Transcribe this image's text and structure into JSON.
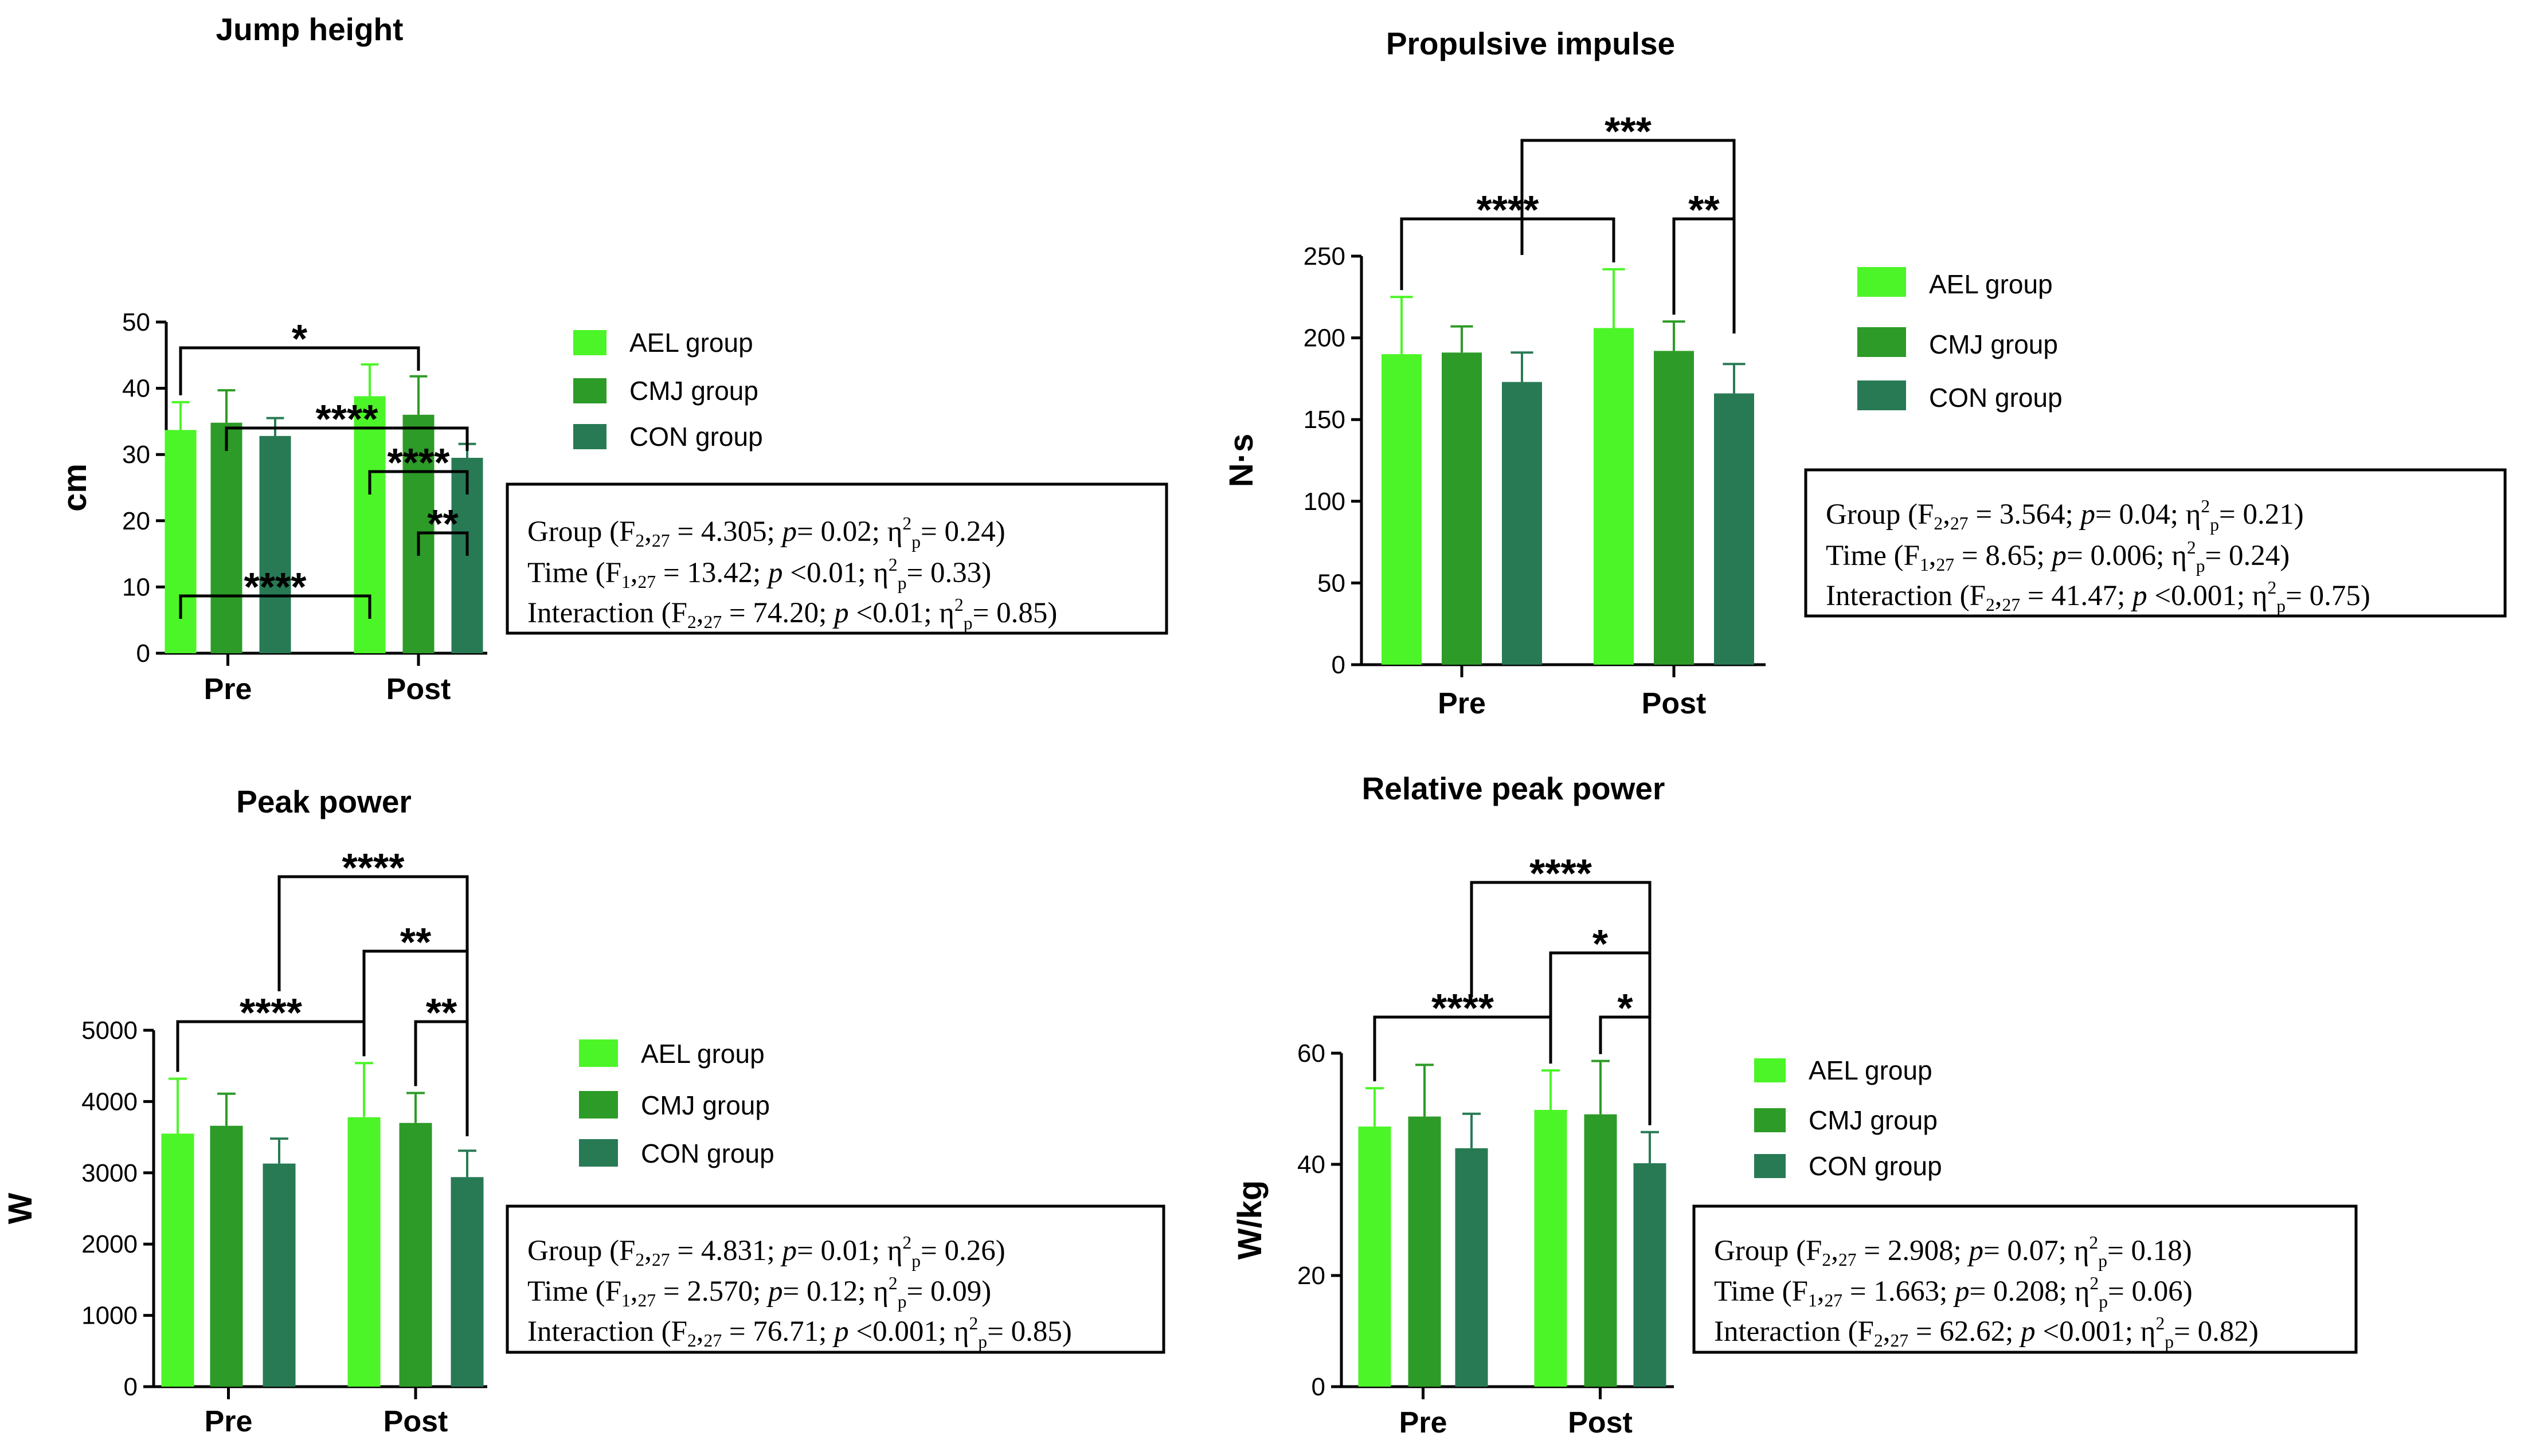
{
  "colors": {
    "AEL": "#4cf527",
    "CMJ": "#2d9b27",
    "CON": "#287a55",
    "ink": "#000000"
  },
  "legend": [
    "AEL group",
    "CMJ group",
    "CON group"
  ],
  "chart_data": [
    {
      "type": "bar",
      "title": "Jump height",
      "ylabel": "cm",
      "categories": [
        "Pre",
        "Post"
      ],
      "ylim": [
        0,
        50
      ],
      "yticks": [
        0,
        10,
        20,
        30,
        40,
        50
      ],
      "tick_labels": [
        "0",
        "10",
        "20",
        "30",
        "40",
        "50"
      ],
      "series": [
        {
          "name": "AEL group",
          "values": [
            33.7,
            38.8
          ],
          "errors": [
            4.2,
            4.8
          ]
        },
        {
          "name": "CMJ group",
          "values": [
            34.8,
            36.0
          ],
          "errors": [
            4.9,
            5.8
          ]
        },
        {
          "name": "CON group",
          "values": [
            32.8,
            29.5
          ],
          "errors": [
            2.7,
            2.1
          ]
        }
      ],
      "significance": [
        {
          "from": [
            0,
            0
          ],
          "to": [
            1,
            0
          ],
          "label": "****"
        },
        {
          "from": [
            1,
            1
          ],
          "to": [
            1,
            2
          ],
          "label": "**"
        },
        {
          "from": [
            1,
            0
          ],
          "to": [
            1,
            2
          ],
          "label": "****"
        },
        {
          "from": [
            0,
            1
          ],
          "to": [
            1,
            2
          ],
          "label": "****"
        },
        {
          "from": [
            0,
            0
          ],
          "to": [
            1,
            1
          ],
          "label": "*"
        }
      ],
      "stats": [
        {
          "name": "Group",
          "f_sub": "2",
          "df": "27",
          "f": "4.305",
          "p_op": "=",
          "p": "0.02",
          "eta": "0.24"
        },
        {
          "name": "Time",
          "f_sub": "1",
          "df": "27",
          "f": "13.42",
          "p_op": "<",
          "p": "0.01",
          "eta": "0.33"
        },
        {
          "name": "Interaction",
          "f_sub": "2",
          "df": "27",
          "f": "74.20",
          "p_op": "<",
          "p": "0.01",
          "eta": "0.85"
        }
      ]
    },
    {
      "type": "bar",
      "title": "Propulsive impulse",
      "ylabel": "N·s",
      "categories": [
        "Pre",
        "Post"
      ],
      "ylim": [
        0,
        250
      ],
      "yticks": [
        0,
        50,
        100,
        150,
        200,
        250
      ],
      "tick_labels": [
        "0",
        "50",
        "100",
        "150",
        "200",
        "250"
      ],
      "series": [
        {
          "name": "AEL group",
          "values": [
            190,
            206
          ],
          "errors": [
            35,
            36
          ]
        },
        {
          "name": "CMJ group",
          "values": [
            191,
            192
          ],
          "errors": [
            16,
            18
          ]
        },
        {
          "name": "CON group",
          "values": [
            173,
            166
          ],
          "errors": [
            18,
            18
          ]
        }
      ],
      "significance": [
        {
          "from": [
            0,
            0
          ],
          "to": [
            1,
            0
          ],
          "label": "****"
        },
        {
          "from": [
            1,
            1
          ],
          "to": [
            1,
            2
          ],
          "label": "**"
        },
        {
          "from": [
            0,
            2
          ],
          "to": [
            1,
            2
          ],
          "label": "***"
        }
      ],
      "stats": [
        {
          "name": "Group",
          "f_sub": "2",
          "df": "27",
          "f": "3.564",
          "p_op": "=",
          "p": "0.04",
          "eta": "0.21"
        },
        {
          "name": "Time",
          "f_sub": "1",
          "df": "27",
          "f": "8.65",
          "p_op": "=",
          "p": "0.006",
          "eta": "0.24"
        },
        {
          "name": "Interaction",
          "f_sub": "2",
          "df": "27",
          "f": "41.47",
          "p_op": "<",
          "p": "0.001",
          "eta": "0.75"
        }
      ]
    },
    {
      "type": "bar",
      "title": "Peak power",
      "ylabel": "W",
      "categories": [
        "Pre",
        "Post"
      ],
      "ylim": [
        0,
        5000
      ],
      "yticks": [
        0,
        1000,
        2000,
        3000,
        4000,
        5000
      ],
      "tick_labels": [
        "0",
        "1000",
        "2000",
        "3000",
        "4000",
        "5000"
      ],
      "series": [
        {
          "name": "AEL group",
          "values": [
            3550,
            3780
          ],
          "errors": [
            770,
            760
          ]
        },
        {
          "name": "CMJ group",
          "values": [
            3660,
            3700
          ],
          "errors": [
            450,
            420
          ]
        },
        {
          "name": "CON group",
          "values": [
            3130,
            2940
          ],
          "errors": [
            350,
            370
          ]
        }
      ],
      "significance": [
        {
          "from": [
            0,
            0
          ],
          "to": [
            1,
            0
          ],
          "label": "****"
        },
        {
          "from": [
            1,
            1
          ],
          "to": [
            1,
            2
          ],
          "label": "**"
        },
        {
          "from": [
            1,
            0
          ],
          "to": [
            1,
            2
          ],
          "label": "**"
        },
        {
          "from": [
            0,
            2
          ],
          "to": [
            1,
            2
          ],
          "label": "****"
        }
      ],
      "stats": [
        {
          "name": "Group",
          "f_sub": "2",
          "df": "27",
          "f": "4.831",
          "p_op": "=",
          "p": "0.01",
          "eta": "0.26"
        },
        {
          "name": "Time",
          "f_sub": "1",
          "df": "27",
          "f": "2.570",
          "p_op": "=",
          "p": "0.12",
          "eta": "0.09"
        },
        {
          "name": "Interaction",
          "f_sub": "2",
          "df": "27",
          "f": "76.71",
          "p_op": "<",
          "p": "0.001",
          "eta": "0.85"
        }
      ]
    },
    {
      "type": "bar",
      "title": "Relative peak power",
      "ylabel": "W/kg",
      "categories": [
        "Pre",
        "Post"
      ],
      "ylim": [
        0,
        60
      ],
      "yticks": [
        0,
        20,
        40,
        60
      ],
      "tick_labels": [
        "0",
        "20",
        "40",
        "60"
      ],
      "series": [
        {
          "name": "AEL group",
          "values": [
            46.8,
            49.8
          ],
          "errors": [
            6.9,
            7.1
          ]
        },
        {
          "name": "CMJ group",
          "values": [
            48.6,
            49.0
          ],
          "errors": [
            9.3,
            9.6
          ]
        },
        {
          "name": "CON group",
          "values": [
            42.9,
            40.2
          ],
          "errors": [
            6.2,
            5.6
          ]
        }
      ],
      "significance": [
        {
          "from": [
            0,
            0
          ],
          "to": [
            1,
            0
          ],
          "label": "****"
        },
        {
          "from": [
            1,
            1
          ],
          "to": [
            1,
            2
          ],
          "label": "*"
        },
        {
          "from": [
            1,
            0
          ],
          "to": [
            1,
            2
          ],
          "label": "*"
        },
        {
          "from": [
            0,
            2
          ],
          "to": [
            1,
            2
          ],
          "label": "****"
        }
      ],
      "stats": [
        {
          "name": "Group",
          "f_sub": "2",
          "df": "27",
          "f": "2.908",
          "p_op": "=",
          "p": "0.07",
          "eta": "0.18"
        },
        {
          "name": "Time",
          "f_sub": "1",
          "df": "27",
          "f": "1.663",
          "p_op": "=",
          "p": "0.208",
          "eta": "0.06"
        },
        {
          "name": "Interaction",
          "f_sub": "2",
          "df": "27",
          "f": "62.62",
          "p_op": "<",
          "p": "0.001",
          "eta": "0.82"
        }
      ]
    }
  ]
}
